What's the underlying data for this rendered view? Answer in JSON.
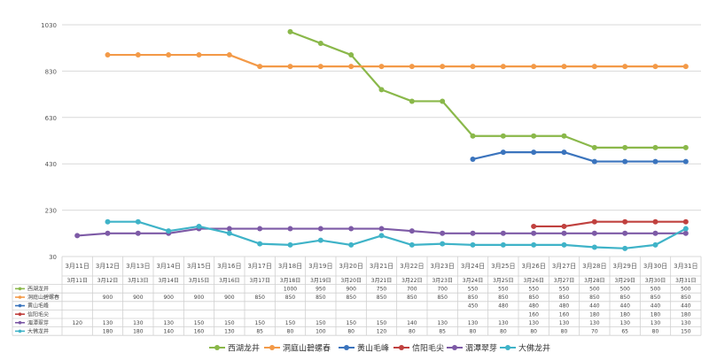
{
  "chart_data": {
    "type": "line",
    "categories": [
      "3月11日",
      "3月12日",
      "3月13日",
      "3月14日",
      "3月15日",
      "3月16日",
      "3月17日",
      "3月18日",
      "3月19日",
      "3月20日",
      "3月21日",
      "3月22日",
      "3月23日",
      "3月24日",
      "3月25日",
      "3月26日",
      "3月27日",
      "3月28日",
      "3月29日",
      "3月30日",
      "3月31日"
    ],
    "y_ticks": [
      "30",
      "230",
      "430",
      "630",
      "830",
      "1030"
    ],
    "ylim": [
      30,
      1030
    ],
    "grid": true,
    "legend_position": "bottom",
    "series": [
      {
        "name": "西湖龙井",
        "color": "#8ab84a",
        "values": [
          null,
          null,
          null,
          null,
          null,
          null,
          null,
          1000,
          950,
          900,
          750,
          700,
          700,
          550,
          550,
          550,
          550,
          500,
          500,
          500,
          500
        ]
      },
      {
        "name": "洞庭山碧螺春",
        "color": "#f39a48",
        "values": [
          null,
          900,
          900,
          900,
          900,
          900,
          850,
          850,
          850,
          850,
          850,
          850,
          850,
          850,
          850,
          850,
          850,
          850,
          850,
          850,
          850
        ]
      },
      {
        "name": "黄山毛峰",
        "color": "#3b74bd",
        "values": [
          null,
          null,
          null,
          null,
          null,
          null,
          null,
          null,
          null,
          null,
          null,
          null,
          null,
          450,
          480,
          480,
          480,
          440,
          440,
          440,
          440
        ]
      },
      {
        "name": "信阳毛尖",
        "color": "#c0413f",
        "values": [
          null,
          null,
          null,
          null,
          null,
          null,
          null,
          null,
          null,
          null,
          null,
          null,
          null,
          null,
          null,
          160,
          160,
          180,
          180,
          180,
          180
        ]
      },
      {
        "name": "湄潭翠芽",
        "color": "#7d5aa6",
        "values": [
          120,
          130,
          130,
          130,
          150,
          150,
          150,
          150,
          150,
          150,
          150,
          140,
          130,
          130,
          130,
          130,
          130,
          130,
          130,
          130,
          130
        ]
      },
      {
        "name": "大佛龙井",
        "color": "#3fb3c8",
        "values": [
          null,
          180,
          180,
          140,
          160,
          130,
          85,
          80,
          100,
          80,
          120,
          80,
          85,
          80,
          80,
          80,
          80,
          70,
          65,
          80,
          150
        ]
      }
    ]
  }
}
